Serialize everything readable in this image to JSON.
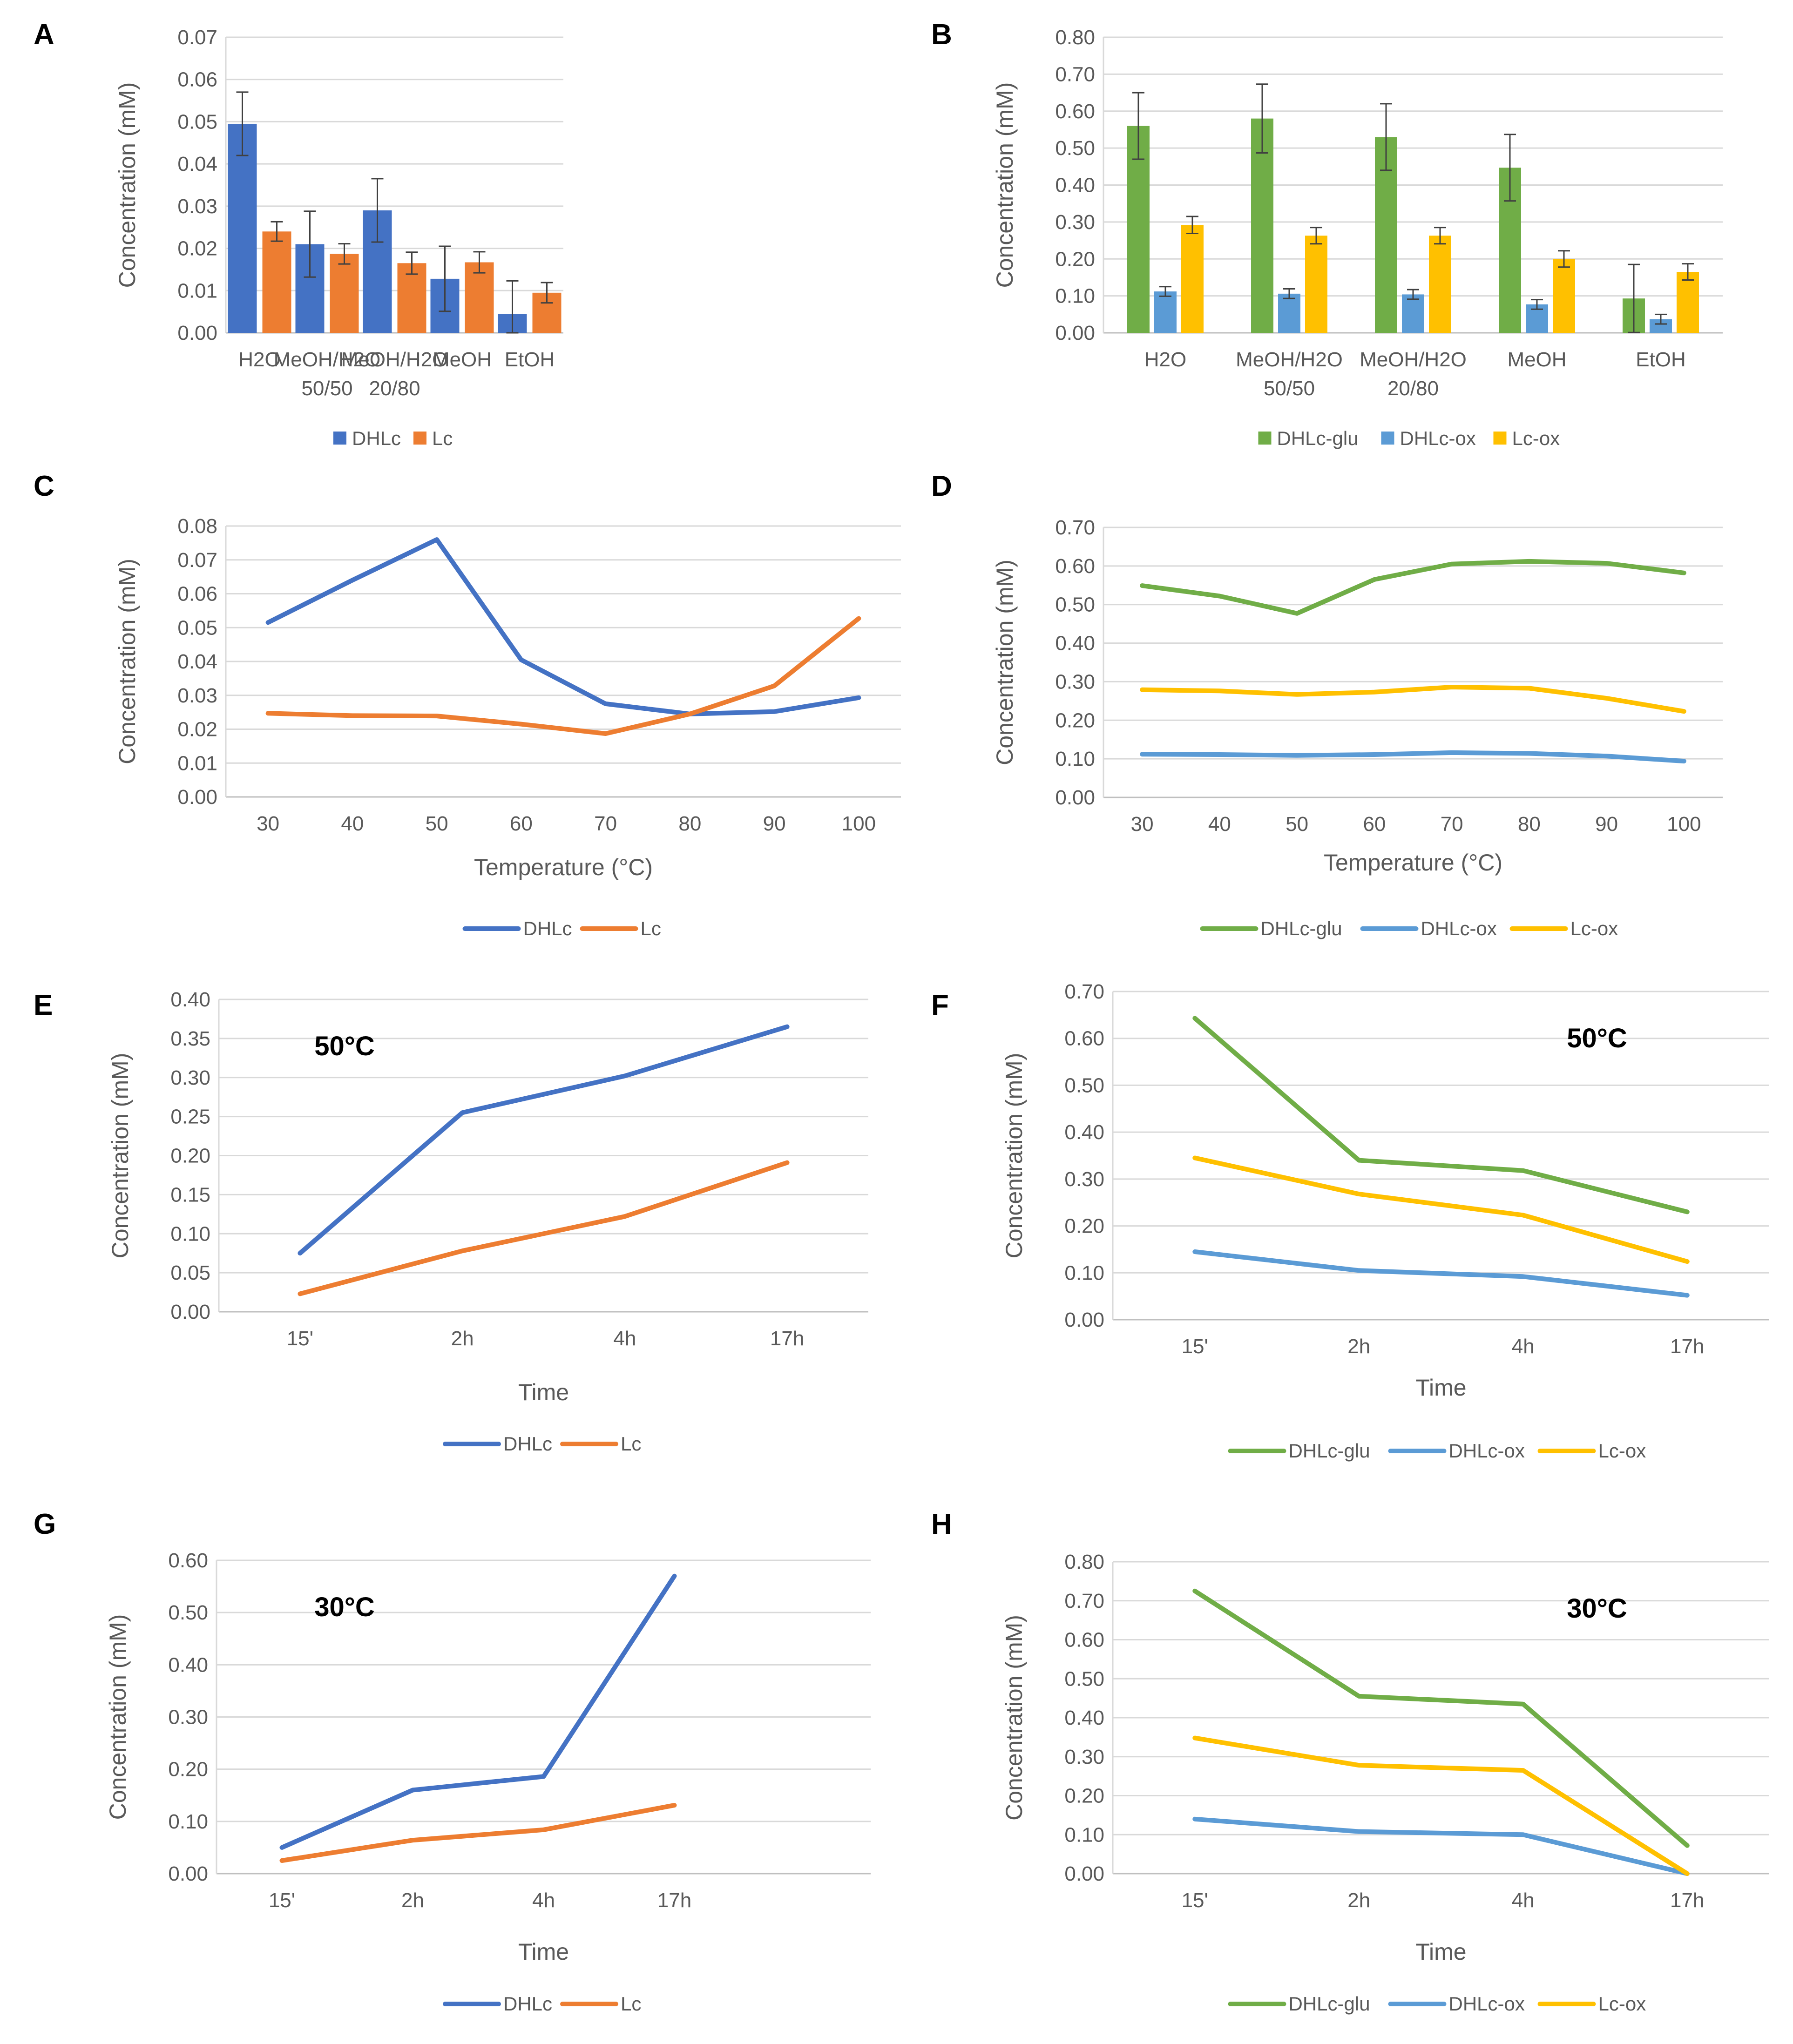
{
  "chart_data": [
    {
      "panel": "A",
      "type": "bar",
      "title": "",
      "xlabel": "",
      "ylabel": "Concentration (mM)",
      "ylim": [
        0,
        0.07
      ],
      "yticks": [
        "0.00",
        "0.01",
        "0.02",
        "0.03",
        "0.04",
        "0.05",
        "0.06",
        "0.07"
      ],
      "categories": [
        [
          "H2O"
        ],
        [
          "MeOH/H2O",
          "50/50"
        ],
        [
          "MeOH/H2O",
          "20/80"
        ],
        [
          "MeOH"
        ],
        [
          "EtOH"
        ]
      ],
      "series": [
        {
          "name": "DHLc",
          "color": "#4472C4",
          "values": [
            0.0495,
            0.021,
            0.029,
            0.0128,
            0.0045
          ],
          "errors": [
            0.0075,
            0.0078,
            0.0075,
            0.0077,
            0.0078
          ]
        },
        {
          "name": "Lc",
          "color": "#ED7D31",
          "values": [
            0.024,
            0.0187,
            0.0165,
            0.0167,
            0.0095
          ],
          "errors": [
            0.0023,
            0.0024,
            0.0026,
            0.0025,
            0.0024
          ]
        }
      ]
    },
    {
      "panel": "B",
      "type": "bar",
      "title": "",
      "xlabel": "",
      "ylabel": "Concentration (mM)",
      "ylim": [
        0,
        0.8
      ],
      "yticks": [
        "0.00",
        "0.10",
        "0.20",
        "0.30",
        "0.40",
        "0.50",
        "0.60",
        "0.70",
        "0.80"
      ],
      "categories": [
        [
          "H2O"
        ],
        [
          "MeOH/H2O",
          "50/50"
        ],
        [
          "MeOH/H2O",
          "20/80"
        ],
        [
          "MeOH"
        ],
        [
          "EtOH"
        ]
      ],
      "series": [
        {
          "name": "DHLc-glu",
          "color": "#70AD47",
          "values": [
            0.56,
            0.58,
            0.53,
            0.447,
            0.093
          ],
          "errors": [
            0.09,
            0.093,
            0.09,
            0.09,
            0.092
          ]
        },
        {
          "name": "DHLc-ox",
          "color": "#5B9BD5",
          "values": [
            0.112,
            0.106,
            0.104,
            0.077,
            0.037
          ],
          "errors": [
            0.013,
            0.013,
            0.013,
            0.013,
            0.013
          ]
        },
        {
          "name": "Lc-ox",
          "color": "#FFC000",
          "values": [
            0.292,
            0.263,
            0.263,
            0.2,
            0.165
          ],
          "errors": [
            0.023,
            0.022,
            0.022,
            0.022,
            0.022
          ]
        }
      ]
    },
    {
      "panel": "C",
      "type": "line",
      "title": "",
      "xlabel": "Temperature (°C)",
      "ylabel": "Concentration (mM)",
      "ylim": [
        0,
        0.08
      ],
      "yticks": [
        "0.00",
        "0.01",
        "0.02",
        "0.03",
        "0.04",
        "0.05",
        "0.06",
        "0.07",
        "0.08"
      ],
      "categories": [
        "30",
        "40",
        "50",
        "60",
        "70",
        "80",
        "90",
        "100"
      ],
      "series": [
        {
          "name": "DHLc",
          "color": "#4472C4",
          "values": [
            0.0515,
            0.064,
            0.076,
            0.0405,
            0.0275,
            0.0245,
            0.0252,
            0.0293
          ]
        },
        {
          "name": "Lc",
          "color": "#ED7D31",
          "values": [
            0.0247,
            0.024,
            0.0239,
            0.0215,
            0.0187,
            0.0245,
            0.0328,
            0.0527
          ]
        }
      ]
    },
    {
      "panel": "D",
      "type": "line",
      "title": "",
      "xlabel": "Temperature (°C)",
      "ylabel": "Concentration (mM)",
      "ylim": [
        0,
        0.7
      ],
      "yticks": [
        "0.00",
        "0.10",
        "0.20",
        "0.30",
        "0.40",
        "0.50",
        "0.60",
        "0.70"
      ],
      "categories": [
        "30",
        "40",
        "50",
        "60",
        "70",
        "80",
        "90",
        "100"
      ],
      "series": [
        {
          "name": "DHLc-glu",
          "color": "#70AD47",
          "values": [
            0.549,
            0.522,
            0.477,
            0.565,
            0.605,
            0.612,
            0.607,
            0.582
          ]
        },
        {
          "name": "DHLc-ox",
          "color": "#5B9BD5",
          "values": [
            0.112,
            0.111,
            0.109,
            0.111,
            0.116,
            0.114,
            0.107,
            0.094
          ]
        },
        {
          "name": "Lc-ox",
          "color": "#FFC000",
          "values": [
            0.279,
            0.276,
            0.267,
            0.273,
            0.286,
            0.283,
            0.257,
            0.223
          ]
        }
      ]
    },
    {
      "panel": "E",
      "type": "line",
      "title": "",
      "annotation": "50°C",
      "xlabel": "Time",
      "ylabel": "Concentration (mM)",
      "ylim": [
        0,
        0.4
      ],
      "yticks": [
        "0.00",
        "0.05",
        "0.10",
        "0.15",
        "0.20",
        "0.25",
        "0.30",
        "0.35",
        "0.40"
      ],
      "categories": [
        "15'",
        "2h",
        "4h",
        "17h"
      ],
      "series": [
        {
          "name": "DHLc",
          "color": "#4472C4",
          "values": [
            0.075,
            0.255,
            0.302,
            0.365
          ]
        },
        {
          "name": "Lc",
          "color": "#ED7D31",
          "values": [
            0.023,
            0.078,
            0.122,
            0.191
          ]
        }
      ]
    },
    {
      "panel": "F",
      "type": "line",
      "title": "",
      "annotation": "50°C",
      "xlabel": "Time",
      "ylabel": "Concentration (mM)",
      "ylim": [
        0,
        0.7
      ],
      "yticks": [
        "0.00",
        "0.10",
        "0.20",
        "0.30",
        "0.40",
        "0.50",
        "0.60",
        "0.70"
      ],
      "categories": [
        "15'",
        "2h",
        "4h",
        "17h"
      ],
      "series": [
        {
          "name": "DHLc-glu",
          "color": "#70AD47",
          "values": [
            0.643,
            0.34,
            0.318,
            0.23
          ]
        },
        {
          "name": "DHLc-ox",
          "color": "#5B9BD5",
          "values": [
            0.145,
            0.105,
            0.092,
            0.052
          ]
        },
        {
          "name": "Lc-ox",
          "color": "#FFC000",
          "values": [
            0.345,
            0.268,
            0.223,
            0.124
          ]
        }
      ]
    },
    {
      "panel": "G",
      "type": "line",
      "title": "",
      "annotation": "30°C",
      "xlabel": "Time",
      "ylabel": "Concentration (mM)",
      "ylim": [
        0,
        0.6
      ],
      "yticks": [
        "0.00",
        "0.10",
        "0.20",
        "0.30",
        "0.40",
        "0.50",
        "0.60"
      ],
      "categories": [
        "15'",
        "2h",
        "4h",
        "17h",
        ""
      ],
      "series": [
        {
          "name": "DHLc",
          "color": "#4472C4",
          "values": [
            0.05,
            0.16,
            0.186,
            0.57,
            null
          ]
        },
        {
          "name": "Lc",
          "color": "#ED7D31",
          "values": [
            0.025,
            0.064,
            0.084,
            0.131,
            null
          ]
        }
      ]
    },
    {
      "panel": "H",
      "type": "line",
      "title": "",
      "annotation": "30°C",
      "xlabel": "Time",
      "ylabel": "Concentration (mM)",
      "ylim": [
        0,
        0.8
      ],
      "yticks": [
        "0.00",
        "0.10",
        "0.20",
        "0.30",
        "0.40",
        "0.50",
        "0.60",
        "0.70",
        "0.80"
      ],
      "categories": [
        "15'",
        "2h",
        "4h",
        "17h"
      ],
      "series": [
        {
          "name": "DHLc-glu",
          "color": "#70AD47",
          "values": [
            0.725,
            0.455,
            0.435,
            0.072
          ]
        },
        {
          "name": "DHLc-ox",
          "color": "#5B9BD5",
          "values": [
            0.14,
            0.108,
            0.1,
            0.0
          ]
        },
        {
          "name": "Lc-ox",
          "color": "#FFC000",
          "values": [
            0.348,
            0.278,
            0.265,
            0.0
          ]
        }
      ]
    }
  ]
}
